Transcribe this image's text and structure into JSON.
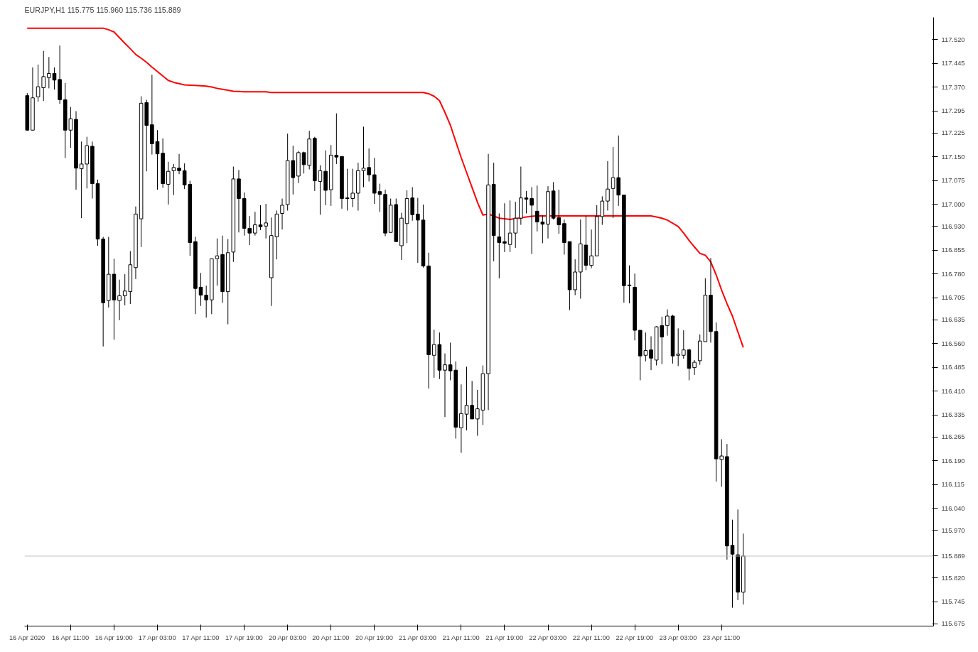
{
  "chart_data": {
    "type": "candlestick",
    "title": "EURJPY,H1  115.775 115.960 115.736 115.889",
    "categories": [
      "16 Apr 2020",
      null,
      null,
      null,
      null,
      null,
      null,
      null,
      "16 Apr 11:00",
      null,
      null,
      null,
      null,
      null,
      null,
      null,
      "16 Apr 19:00",
      null,
      null,
      null,
      null,
      null,
      null,
      null,
      "17 Apr 03:00",
      null,
      null,
      null,
      null,
      null,
      null,
      null,
      "17 Apr 11:00",
      null,
      null,
      null,
      null,
      null,
      null,
      null,
      "17 Apr 19:00",
      null,
      null,
      null,
      null,
      null,
      null,
      null,
      "20 Apr 03:00",
      null,
      null,
      null,
      null,
      null,
      null,
      null,
      "20 Apr 11:00",
      null,
      null,
      null,
      null,
      null,
      null,
      null,
      "20 Apr 19:00",
      null,
      null,
      null,
      null,
      null,
      null,
      null,
      "21 Apr 03:00",
      null,
      null,
      null,
      null,
      null,
      null,
      null,
      "21 Apr 11:00",
      null,
      null,
      null,
      null,
      null,
      null,
      null,
      "21 Apr 19:00",
      null,
      null,
      null,
      null,
      null,
      null,
      null,
      "22 Apr 03:00",
      null,
      null,
      null,
      null,
      null,
      null,
      null,
      "22 Apr 11:00",
      null,
      null,
      null,
      null,
      null,
      null,
      null,
      "22 Apr 19:00",
      null,
      null,
      null,
      null,
      null,
      null,
      null,
      "23 Apr 03:00",
      null,
      null,
      null,
      null,
      null,
      null,
      null,
      "23 Apr 11:00",
      null,
      null,
      null,
      null
    ],
    "ohlc": [
      [
        117.343,
        117.351,
        117.232,
        117.234
      ],
      [
        117.234,
        117.432,
        117.234,
        117.336
      ],
      [
        117.339,
        117.441,
        117.324,
        117.371
      ],
      [
        117.368,
        117.484,
        117.326,
        117.403
      ],
      [
        117.4,
        117.465,
        117.366,
        117.413
      ],
      [
        117.413,
        117.432,
        117.362,
        117.392
      ],
      [
        117.394,
        117.501,
        117.317,
        117.33
      ],
      [
        117.33,
        117.383,
        117.146,
        117.234
      ],
      [
        117.234,
        117.307,
        117.178,
        117.27
      ],
      [
        117.268,
        117.294,
        117.046,
        117.114
      ],
      [
        117.112,
        117.198,
        116.956,
        117.127
      ],
      [
        117.127,
        117.213,
        117.05,
        117.185
      ],
      [
        117.183,
        117.198,
        117.018,
        117.065
      ],
      [
        117.065,
        117.078,
        116.869,
        116.89
      ],
      [
        116.89,
        116.897,
        116.551,
        116.689
      ],
      [
        116.696,
        116.897,
        116.674,
        116.779
      ],
      [
        116.779,
        116.828,
        116.572,
        116.698
      ],
      [
        116.696,
        116.762,
        116.634,
        116.711
      ],
      [
        116.711,
        116.779,
        116.681,
        116.726
      ],
      [
        116.724,
        116.852,
        116.685,
        116.809
      ],
      [
        116.8,
        116.993,
        116.764,
        116.969
      ],
      [
        116.954,
        117.341,
        116.865,
        117.319
      ],
      [
        117.321,
        117.33,
        117.104,
        117.249
      ],
      [
        117.251,
        117.409,
        117.157,
        117.191
      ],
      [
        117.198,
        117.234,
        117.046,
        117.159
      ],
      [
        117.161,
        117.208,
        117.052,
        117.065
      ],
      [
        117.063,
        117.134,
        116.999,
        117.104
      ],
      [
        117.106,
        117.127,
        117.029,
        117.116
      ],
      [
        117.114,
        117.159,
        117.095,
        117.106
      ],
      [
        117.106,
        117.129,
        117.048,
        117.061
      ],
      [
        117.063,
        117.074,
        116.837,
        116.879
      ],
      [
        116.882,
        116.897,
        116.653,
        116.734
      ],
      [
        116.738,
        116.783,
        116.679,
        116.713
      ],
      [
        116.713,
        116.743,
        116.642,
        116.698
      ],
      [
        116.698,
        116.828,
        116.653,
        116.828
      ],
      [
        116.828,
        116.892,
        116.743,
        116.837
      ],
      [
        116.841,
        116.901,
        116.689,
        116.724
      ],
      [
        116.724,
        116.89,
        116.621,
        116.847
      ],
      [
        116.849,
        117.119,
        116.818,
        117.08
      ],
      [
        117.08,
        117.108,
        116.911,
        117.018
      ],
      [
        117.018,
        117.037,
        116.901,
        116.924
      ],
      [
        116.924,
        116.963,
        116.871,
        116.909
      ],
      [
        116.909,
        116.976,
        116.901,
        116.935
      ],
      [
        116.935,
        116.997,
        116.918,
        116.929
      ],
      [
        116.931,
        117.001,
        116.892,
        116.941
      ],
      [
        116.768,
        116.958,
        116.679,
        116.901
      ],
      [
        116.897,
        116.98,
        116.826,
        116.969
      ],
      [
        116.971,
        117.018,
        116.92,
        116.997
      ],
      [
        116.999,
        117.223,
        116.98,
        117.138
      ],
      [
        117.138,
        117.185,
        117.031,
        117.084
      ],
      [
        117.089,
        117.168,
        117.067,
        117.163
      ],
      [
        117.163,
        117.166,
        117.097,
        117.125
      ],
      [
        117.123,
        117.232,
        117.11,
        117.206
      ],
      [
        117.208,
        117.213,
        117.042,
        117.074
      ],
      [
        117.072,
        117.123,
        116.967,
        117.106
      ],
      [
        117.104,
        117.17,
        116.997,
        117.044
      ],
      [
        117.046,
        117.187,
        116.995,
        117.155
      ],
      [
        117.155,
        117.287,
        117.127,
        117.149
      ],
      [
        117.151,
        117.151,
        116.986,
        117.018
      ],
      [
        117.02,
        117.112,
        116.98,
        117.018
      ],
      [
        117.018,
        117.112,
        116.991,
        117.035
      ],
      [
        117.035,
        117.131,
        116.98,
        117.106
      ],
      [
        117.106,
        117.245,
        117.054,
        117.114
      ],
      [
        117.116,
        117.176,
        117.072,
        117.093
      ],
      [
        117.093,
        117.146,
        117.001,
        117.035
      ],
      [
        117.04,
        117.065,
        116.976,
        117.031
      ],
      [
        117.031,
        117.046,
        116.899,
        116.909
      ],
      [
        116.911,
        117.018,
        116.911,
        116.997
      ],
      [
        116.999,
        117.018,
        116.882,
        116.882
      ],
      [
        116.869,
        116.973,
        116.824,
        116.956
      ],
      [
        116.939,
        117.044,
        116.877,
        117.018
      ],
      [
        117.02,
        117.054,
        116.948,
        116.967
      ],
      [
        116.969,
        117.02,
        116.815,
        116.95
      ],
      [
        116.95,
        116.999,
        116.8,
        116.805
      ],
      [
        116.805,
        116.847,
        116.418,
        116.525
      ],
      [
        116.523,
        116.604,
        116.452,
        116.557
      ],
      [
        116.557,
        116.595,
        116.448,
        116.476
      ],
      [
        116.476,
        116.529,
        116.328,
        116.493
      ],
      [
        116.493,
        116.563,
        116.444,
        116.474
      ],
      [
        116.476,
        116.504,
        116.26,
        116.296
      ],
      [
        116.294,
        116.431,
        116.215,
        116.339
      ],
      [
        116.337,
        116.487,
        116.286,
        116.365
      ],
      [
        116.365,
        116.442,
        116.322,
        116.322
      ],
      [
        116.322,
        116.414,
        116.269,
        116.354
      ],
      [
        116.35,
        116.491,
        116.303,
        116.465
      ],
      [
        116.465,
        117.159,
        116.35,
        117.061
      ],
      [
        117.063,
        117.131,
        116.82,
        116.901
      ],
      [
        116.897,
        116.971,
        116.766,
        116.879
      ],
      [
        116.882,
        117.003,
        116.849,
        116.877
      ],
      [
        116.873,
        117.012,
        116.849,
        116.909
      ],
      [
        116.909,
        117.008,
        116.862,
        116.956
      ],
      [
        116.956,
        117.119,
        116.935,
        117.02
      ],
      [
        117.02,
        117.042,
        116.971,
        117.016
      ],
      [
        117.018,
        117.054,
        116.843,
        116.997
      ],
      [
        116.978,
        117.059,
        116.914,
        116.944
      ],
      [
        116.944,
        116.965,
        116.877,
        116.937
      ],
      [
        116.937,
        117.057,
        116.892,
        117.04
      ],
      [
        117.042,
        117.07,
        116.952,
        116.956
      ],
      [
        116.958,
        117.046,
        116.907,
        116.935
      ],
      [
        116.939,
        116.952,
        116.841,
        116.879
      ],
      [
        116.882,
        116.882,
        116.666,
        116.73
      ],
      [
        116.73,
        116.826,
        116.713,
        116.786
      ],
      [
        116.786,
        116.952,
        116.702,
        116.875
      ],
      [
        116.871,
        116.963,
        116.792,
        116.807
      ],
      [
        116.807,
        116.92,
        116.798,
        116.837
      ],
      [
        116.837,
        116.997,
        116.837,
        116.961
      ],
      [
        116.961,
        117.025,
        116.935,
        117.01
      ],
      [
        117.01,
        117.136,
        116.98,
        117.048
      ],
      [
        117.05,
        117.181,
        116.956,
        117.084
      ],
      [
        117.084,
        117.217,
        116.995,
        117.029
      ],
      [
        117.029,
        117.029,
        116.689,
        116.743
      ],
      [
        116.745,
        116.807,
        116.687,
        116.743
      ],
      [
        116.738,
        116.781,
        116.57,
        116.602
      ],
      [
        116.602,
        116.602,
        116.444,
        116.521
      ],
      [
        116.523,
        116.595,
        116.504,
        116.538
      ],
      [
        116.54,
        116.583,
        116.476,
        116.514
      ],
      [
        116.508,
        116.615,
        116.491,
        116.613
      ],
      [
        116.617,
        116.645,
        116.495,
        116.581
      ],
      [
        116.617,
        116.668,
        116.585,
        116.647
      ],
      [
        116.647,
        116.651,
        116.497,
        116.521
      ],
      [
        116.523,
        116.608,
        116.489,
        116.527
      ],
      [
        116.523,
        116.602,
        116.512,
        116.54
      ],
      [
        116.54,
        116.544,
        116.444,
        116.482
      ],
      [
        116.484,
        116.508,
        116.461,
        116.501
      ],
      [
        116.506,
        116.589,
        116.493,
        116.568
      ],
      [
        116.566,
        116.766,
        116.566,
        116.713
      ],
      [
        116.713,
        116.83,
        116.563,
        116.598
      ],
      [
        116.598,
        116.627,
        116.124,
        116.196
      ],
      [
        116.194,
        116.258,
        116.108,
        116.205
      ],
      [
        116.203,
        116.243,
        115.878,
        115.921
      ],
      [
        115.923,
        116.004,
        115.726,
        115.895
      ],
      [
        115.893,
        116.036,
        115.75,
        115.775
      ],
      [
        115.775,
        115.96,
        115.736,
        115.889
      ]
    ],
    "series": [
      {
        "type": "line",
        "color": "#ff0000",
        "values": [
          117.556,
          117.556,
          117.556,
          117.556,
          117.556,
          117.556,
          117.556,
          117.556,
          117.556,
          117.556,
          117.556,
          117.556,
          117.556,
          117.556,
          117.556,
          117.551,
          117.544,
          117.526,
          117.508,
          117.491,
          117.473,
          117.461,
          117.448,
          117.433,
          117.419,
          117.405,
          117.391,
          117.385,
          117.381,
          117.377,
          117.376,
          117.375,
          117.374,
          117.373,
          117.37,
          117.366,
          117.363,
          117.36,
          117.357,
          117.356,
          117.355,
          117.355,
          117.355,
          117.355,
          117.355,
          117.353,
          117.353,
          117.353,
          117.353,
          117.353,
          117.353,
          117.353,
          117.353,
          117.353,
          117.353,
          117.353,
          117.353,
          117.353,
          117.353,
          117.353,
          117.353,
          117.353,
          117.353,
          117.353,
          117.353,
          117.353,
          117.353,
          117.353,
          117.353,
          117.353,
          117.353,
          117.353,
          117.353,
          117.353,
          117.349,
          117.341,
          117.327,
          117.29,
          117.25,
          117.198,
          117.147,
          117.1,
          117.053,
          117.006,
          116.966,
          116.969,
          116.963,
          116.956,
          116.954,
          116.952,
          116.955,
          116.957,
          116.96,
          116.962,
          116.963,
          116.963,
          116.963,
          116.963,
          116.963,
          116.963,
          116.963,
          116.963,
          116.963,
          116.963,
          116.963,
          116.963,
          116.963,
          116.963,
          116.963,
          116.963,
          116.963,
          116.963,
          116.963,
          116.963,
          116.963,
          116.963,
          116.96,
          116.956,
          116.95,
          116.94,
          116.93,
          116.909,
          116.886,
          116.865,
          116.845,
          116.839,
          116.818,
          116.777,
          116.729,
          116.686,
          116.647,
          116.597,
          116.548
        ]
      }
    ],
    "ylim": [
      115.668,
      117.59
    ],
    "yticks": [
      {
        "value": 117.52,
        "label": "117.520"
      },
      117.445,
      {
        "value": 117.37,
        "label": "117.370"
      },
      117.295,
      117.225,
      {
        "value": 117.15,
        "label": "117.150"
      },
      117.075,
      {
        "value": 117.0,
        "label": "117.000"
      },
      {
        "value": 116.93,
        "label": "116.930"
      },
      116.855,
      {
        "value": 116.78,
        "label": "116.780"
      },
      116.705,
      116.635,
      {
        "value": 116.56,
        "label": "116.560"
      },
      116.485,
      {
        "value": 116.41,
        "label": "116.410"
      },
      116.335,
      116.265,
      {
        "value": 116.19,
        "label": "116.190"
      },
      116.115,
      {
        "value": 116.04,
        "label": "116.040"
      },
      {
        "value": 115.97,
        "label": "115.970"
      },
      {
        "value": 115.82,
        "label": "115.820"
      },
      115.745,
      115.675
    ],
    "ref_lines": [
      {
        "axis": "y",
        "value": 115.889,
        "label": "115.889",
        "color": "#c0c0c0"
      }
    ],
    "grid": false
  }
}
